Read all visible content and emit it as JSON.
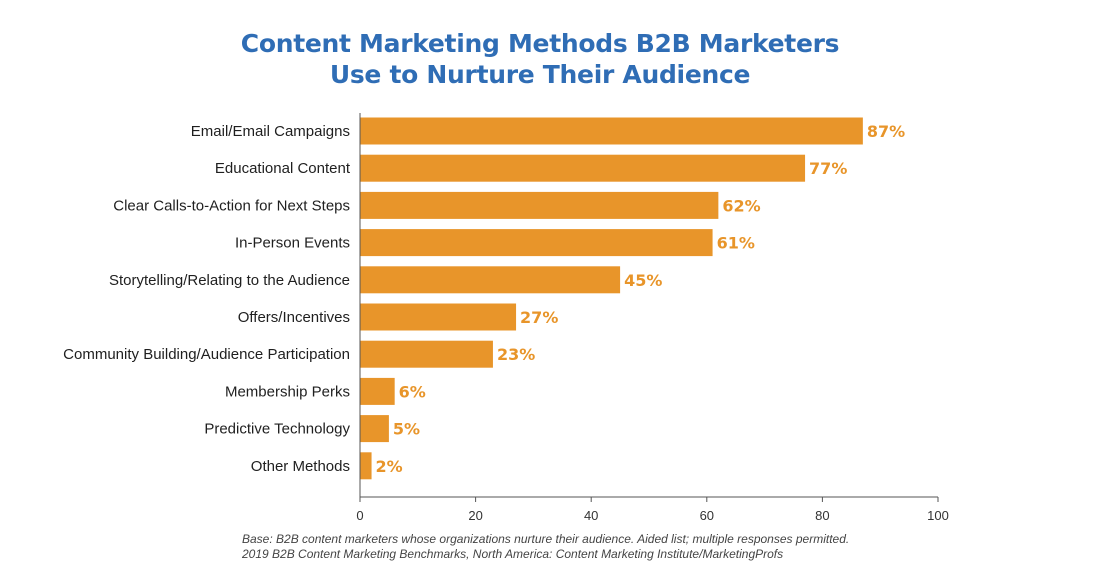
{
  "chart_data": {
    "type": "bar",
    "orientation": "horizontal",
    "title_lines": [
      "Content Marketing Methods B2B Marketers",
      "Use to Nurture Their Audience"
    ],
    "categories": [
      "Email/Email Campaigns",
      "Educational Content",
      "Clear Calls-to-Action for Next Steps",
      "In-Person Events",
      "Storytelling/Relating to the Audience",
      "Offers/Incentives",
      "Community Building/Audience Participation",
      "Membership Perks",
      "Predictive Technology",
      "Other Methods"
    ],
    "values": [
      87,
      77,
      62,
      61,
      45,
      27,
      23,
      6,
      5,
      2
    ],
    "value_labels": [
      "87%",
      "77%",
      "62%",
      "61%",
      "45%",
      "27%",
      "23%",
      "6%",
      "5%",
      "2%"
    ],
    "xlim": [
      0,
      100
    ],
    "xticks": [
      0,
      20,
      40,
      60,
      80,
      100
    ],
    "xtick_labels": [
      "0",
      "20",
      "40",
      "60",
      "80",
      "100"
    ],
    "grid": false,
    "bar_color": "#e8952a",
    "title_color": "#2f6db5"
  },
  "footnote": {
    "line1": "Base: B2B content marketers whose organizations nurture their audience. Aided list; multiple responses permitted.",
    "line2": "2019 B2B Content Marketing Benchmarks, North America: Content Marketing Institute/MarketingProfs"
  }
}
